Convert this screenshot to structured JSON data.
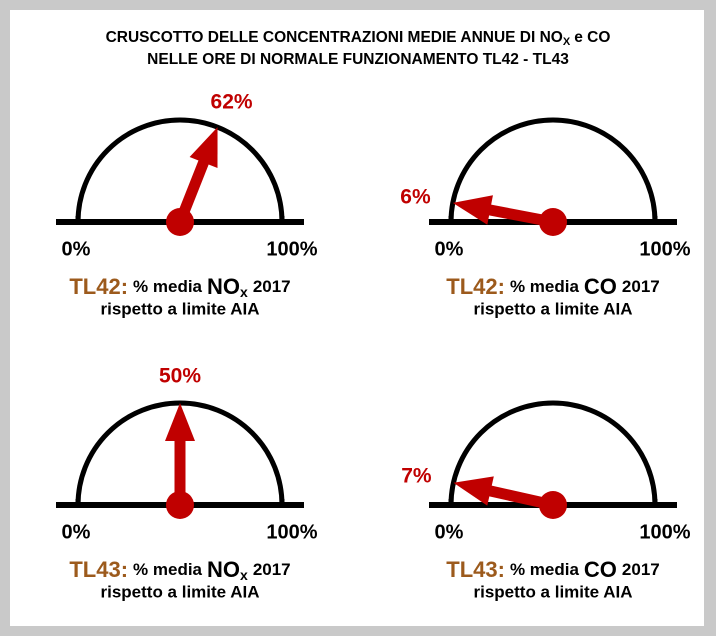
{
  "title": {
    "line1": "CRUSCOTTO DELLE CONCENTRAZIONI MEDIE ANNUE DI NO",
    "line1_sub": "X",
    "line1_end": "e CO",
    "line2": "NELLE ORE DI NORMALE FUNZIONAMENTO TL42 - TL43"
  },
  "chart_data": [
    {
      "type": "gauge",
      "value": 62,
      "value_label": "62%",
      "xlim": [
        0,
        100
      ],
      "xticks": [
        {
          "value": 0,
          "label": "0%"
        },
        {
          "value": 100,
          "label": "100%"
        }
      ],
      "color": "#c00000",
      "caption": {
        "unit": "TL42:",
        "pre": "% media",
        "pollutant": "NO",
        "sub": "x",
        "year": "2017",
        "line2": "rispetto a limite AIA"
      }
    },
    {
      "type": "gauge",
      "value": 6,
      "value_label": "6%",
      "xlim": [
        0,
        100
      ],
      "xticks": [
        {
          "value": 0,
          "label": "0%"
        },
        {
          "value": 100,
          "label": "100%"
        }
      ],
      "color": "#c00000",
      "caption": {
        "unit": "TL42:",
        "pre": "% media",
        "pollutant": "CO",
        "year": "2017",
        "line2": "rispetto a limite AIA"
      }
    },
    {
      "type": "gauge",
      "value": 50,
      "value_label": "50%",
      "xlim": [
        0,
        100
      ],
      "xticks": [
        {
          "value": 0,
          "label": "0%"
        },
        {
          "value": 100,
          "label": "100%"
        }
      ],
      "color": "#c00000",
      "caption": {
        "unit": "TL43:",
        "pre": "% media",
        "pollutant": "NO",
        "sub": "x",
        "year": "2017",
        "line2": "rispetto a limite AIA"
      }
    },
    {
      "type": "gauge",
      "value": 7,
      "value_label": "7%",
      "xlim": [
        0,
        100
      ],
      "xticks": [
        {
          "value": 0,
          "label": "0%"
        },
        {
          "value": 100,
          "label": "100%"
        }
      ],
      "color": "#c00000",
      "caption": {
        "unit": "TL43:",
        "pre": "% media",
        "pollutant": "CO",
        "year": "2017",
        "line2": "rispetto a limite AIA"
      }
    }
  ]
}
